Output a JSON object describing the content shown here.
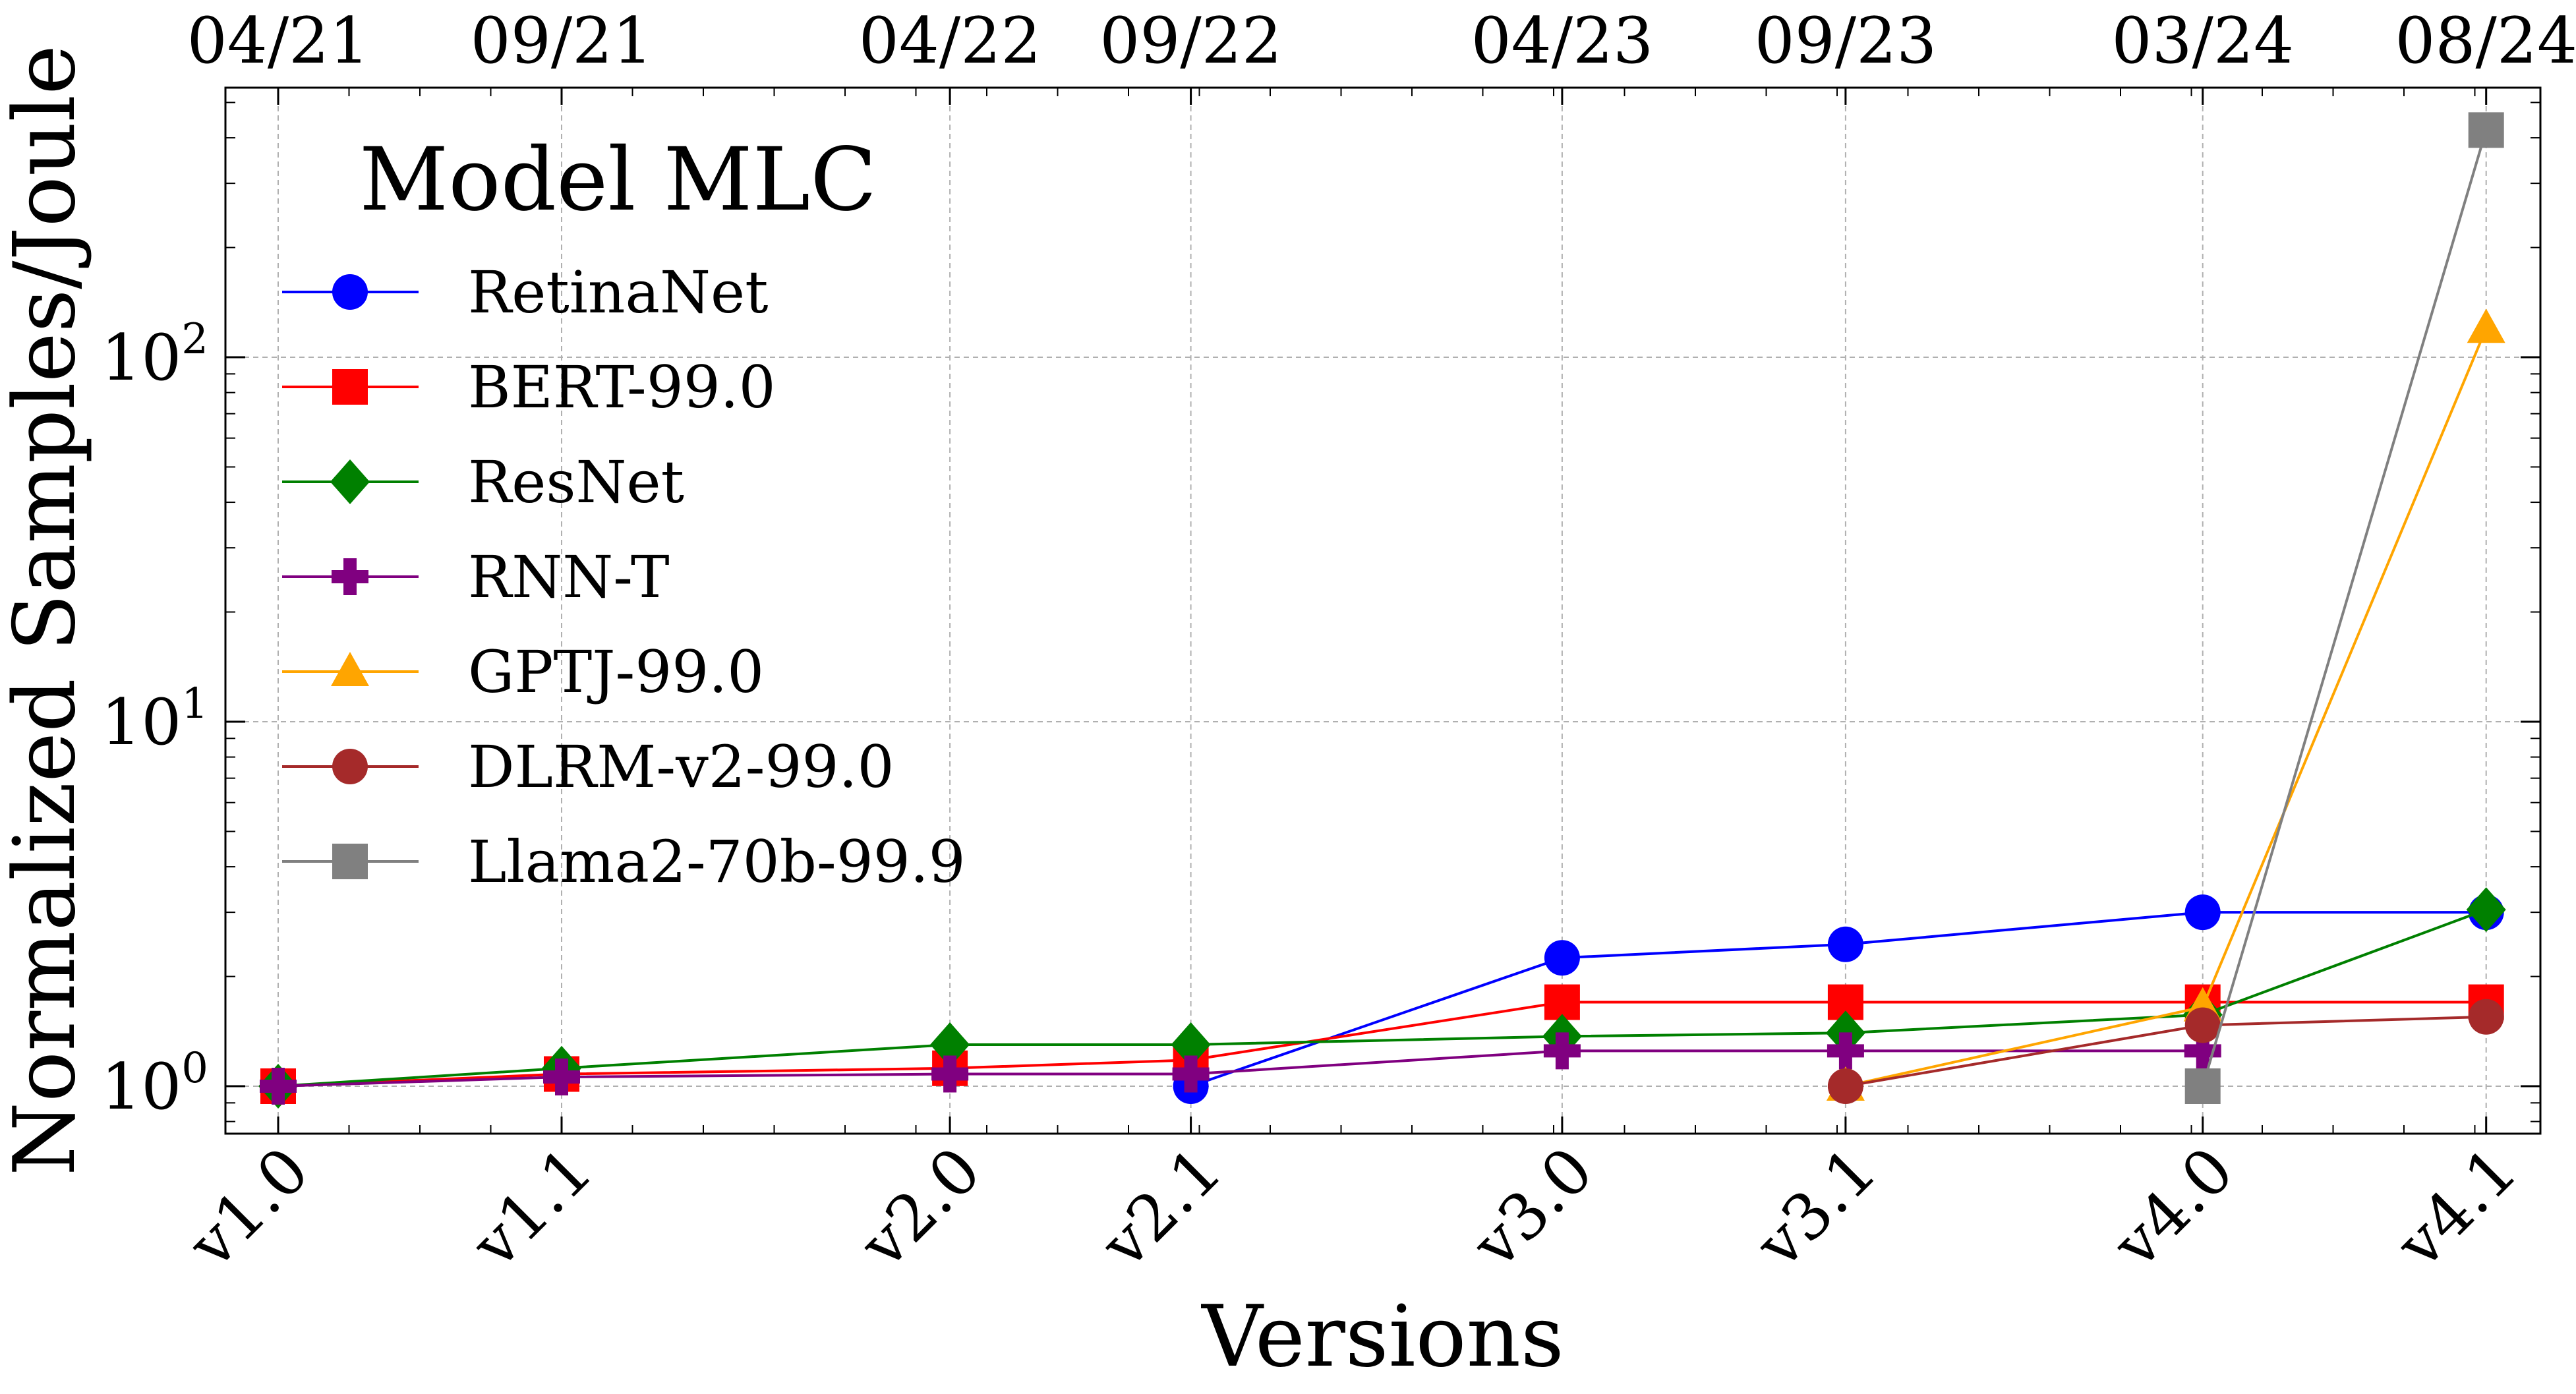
{
  "chart_data": {
    "type": "line",
    "title": "",
    "xlabel": "Versions",
    "ylabel": "Normalized Samples/Joule",
    "yscale": "log",
    "ylim": [
      0.75,
      550
    ],
    "grid": true,
    "legend": {
      "title": "Model MLC",
      "placement": "top-left"
    },
    "categories": [
      "v1.0",
      "v1.1",
      "v2.0",
      "v2.1",
      "v3.0",
      "v3.1",
      "v4.0",
      "v4.1"
    ],
    "x": [
      0,
      1,
      2.37,
      3.22,
      4.53,
      5.53,
      6.79,
      7.79
    ],
    "top_axis_labels": [
      "04/21",
      "09/21",
      "04/22",
      "09/22",
      "04/23",
      "09/23",
      "03/24",
      "08/24"
    ],
    "yticks": [
      {
        "value": 1,
        "base": "10",
        "exp": "0"
      },
      {
        "value": 10,
        "base": "10",
        "exp": "1"
      },
      {
        "value": 100,
        "base": "10",
        "exp": "2"
      }
    ],
    "series": [
      {
        "name": "RetinaNet",
        "color": "#0000ff",
        "marker": "circle",
        "values": [
          null,
          null,
          null,
          1.0,
          2.25,
          2.45,
          3.0,
          3.0
        ]
      },
      {
        "name": "BERT-99.0",
        "color": "#ff0000",
        "marker": "square",
        "values": [
          1.0,
          1.08,
          1.12,
          1.18,
          1.7,
          1.7,
          1.7,
          1.7
        ]
      },
      {
        "name": "ResNet",
        "color": "#008000",
        "marker": "diamond",
        "values": [
          1.0,
          1.12,
          1.3,
          1.3,
          1.37,
          1.4,
          1.57,
          3.05
        ]
      },
      {
        "name": "RNN-T",
        "color": "#800080",
        "marker": "plus",
        "values": [
          1.0,
          1.06,
          1.08,
          1.08,
          1.25,
          1.25,
          1.25,
          null
        ]
      },
      {
        "name": "GPTJ-99.0",
        "color": "#ffa500",
        "marker": "triangle",
        "values": [
          null,
          null,
          null,
          null,
          null,
          1.0,
          1.65,
          120
        ]
      },
      {
        "name": "DLRM-v2-99.0",
        "color": "#a52a2a",
        "marker": "circle",
        "values": [
          null,
          null,
          null,
          null,
          null,
          1.0,
          1.47,
          1.55
        ]
      },
      {
        "name": "Llama2-70b-99.9",
        "color": "#808080",
        "marker": "square",
        "values": [
          null,
          null,
          null,
          null,
          null,
          null,
          1.0,
          420
        ]
      }
    ]
  }
}
